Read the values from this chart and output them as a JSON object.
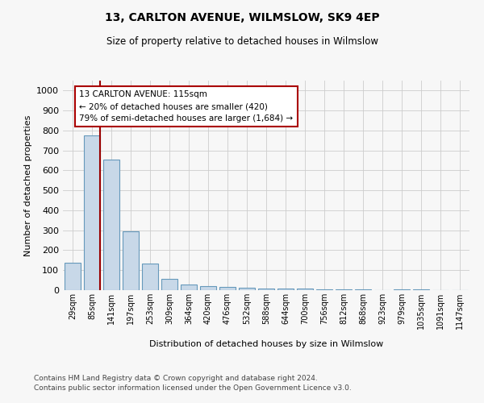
{
  "title1": "13, CARLTON AVENUE, WILMSLOW, SK9 4EP",
  "title2": "Size of property relative to detached houses in Wilmslow",
  "xlabel": "Distribution of detached houses by size in Wilmslow",
  "ylabel": "Number of detached properties",
  "bar_labels": [
    "29sqm",
    "85sqm",
    "141sqm",
    "197sqm",
    "253sqm",
    "309sqm",
    "364sqm",
    "420sqm",
    "476sqm",
    "532sqm",
    "588sqm",
    "644sqm",
    "700sqm",
    "756sqm",
    "812sqm",
    "868sqm",
    "923sqm",
    "979sqm",
    "1035sqm",
    "1091sqm",
    "1147sqm"
  ],
  "bar_values": [
    138,
    775,
    655,
    295,
    135,
    55,
    30,
    20,
    15,
    12,
    10,
    8,
    8,
    5,
    5,
    4,
    0,
    4,
    4,
    0,
    0
  ],
  "bar_color": "#c8d8e8",
  "bar_edge_color": "#6699bb",
  "vline_x": 1.42,
  "vline_color": "#990000",
  "annotation_text": "13 CARLTON AVENUE: 115sqm\n← 20% of detached houses are smaller (420)\n79% of semi-detached houses are larger (1,684) →",
  "annotation_box_color": "white",
  "annotation_edge_color": "#aa0000",
  "ylim": [
    0,
    1050
  ],
  "yticks": [
    0,
    100,
    200,
    300,
    400,
    500,
    600,
    700,
    800,
    900,
    1000
  ],
  "footer1": "Contains HM Land Registry data © Crown copyright and database right 2024.",
  "footer2": "Contains public sector information licensed under the Open Government Licence v3.0.",
  "bg_color": "#f7f7f7",
  "grid_color": "#cccccc"
}
